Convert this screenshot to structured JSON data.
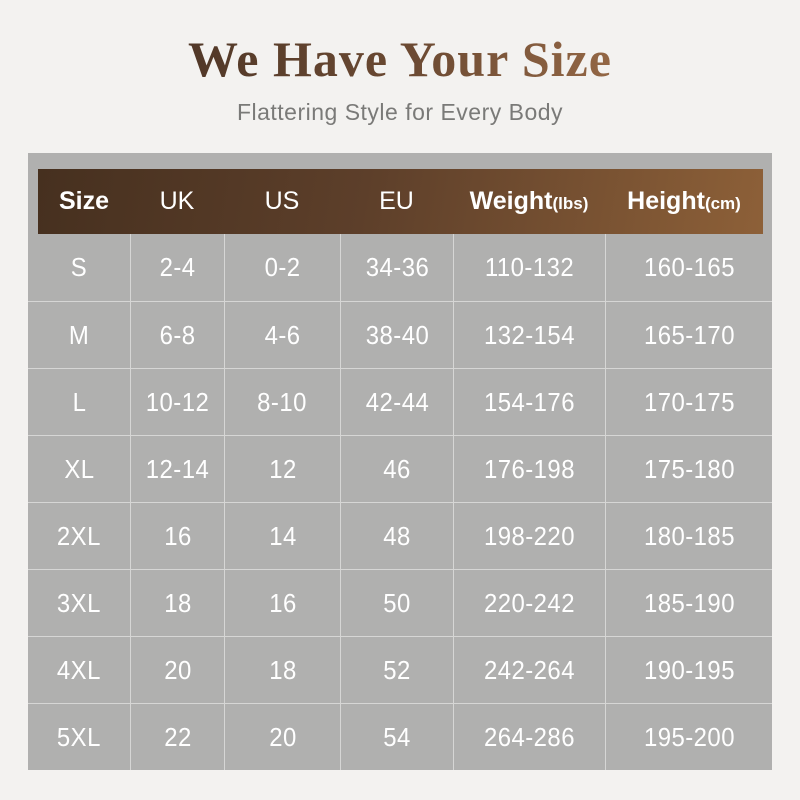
{
  "page": {
    "background_color": "#f3f2f0",
    "accent_brown_dark": "#46301f",
    "accent_brown_light": "#8d6038",
    "panel_gray": "#b0b0af",
    "text_white": "#ffffff",
    "subtitle_gray": "#7a7a78"
  },
  "header": {
    "title": "We Have Your Size",
    "subtitle": "Flattering Style for Every Body"
  },
  "chart_data": {
    "type": "table",
    "title": "We Have Your Size",
    "subtitle": "Flattering Style for Every Body",
    "columns": [
      {
        "label": "Size",
        "unit": "",
        "bold": true
      },
      {
        "label": "UK",
        "unit": "",
        "bold": false
      },
      {
        "label": "US",
        "unit": "",
        "bold": false
      },
      {
        "label": "EU",
        "unit": "",
        "bold": false
      },
      {
        "label": "Weight",
        "unit": "(lbs)",
        "bold": true
      },
      {
        "label": "Height",
        "unit": "(cm)",
        "bold": true
      }
    ],
    "rows": [
      [
        "S",
        "2-4",
        "0-2",
        "34-36",
        "110-132",
        "160-165"
      ],
      [
        "M",
        "6-8",
        "4-6",
        "38-40",
        "132-154",
        "165-170"
      ],
      [
        "L",
        "10-12",
        "8-10",
        "42-44",
        "154-176",
        "170-175"
      ],
      [
        "XL",
        "12-14",
        "12",
        "46",
        "176-198",
        "175-180"
      ],
      [
        "2XL",
        "16",
        "14",
        "48",
        "198-220",
        "180-185"
      ],
      [
        "3XL",
        "18",
        "16",
        "50",
        "220-242",
        "185-190"
      ],
      [
        "4XL",
        "20",
        "18",
        "52",
        "242-264",
        "190-195"
      ],
      [
        "5XL",
        "22",
        "20",
        "54",
        "264-286",
        "195-200"
      ]
    ]
  }
}
